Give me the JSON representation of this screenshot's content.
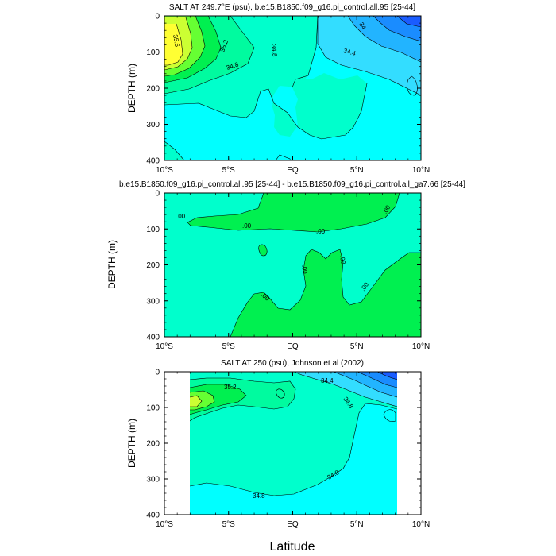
{
  "colors": {
    "cyan": "#00ffff",
    "aqua_green": "#00ffcc",
    "mint": "#00fb9f",
    "green": "#00f050",
    "bright_green": "#66ff33",
    "yellow_green": "#ccff33",
    "yellow": "#ffff33",
    "light_blue": "#33ddff",
    "sky_blue": "#22b4ff",
    "blue": "#1a8cff",
    "deep_blue": "#1a5cff"
  },
  "x_axis_label": "Latitude",
  "chart_data": [
    {
      "type": "contour",
      "title": "SALT AT 249.7°E (psu), b.e15.B1850.f09_g16.pi_control.all.95 [25-44]",
      "xlabel": "",
      "ylabel": "DEPTH (m)",
      "x_tick_labels": [
        "10°S",
        "5°S",
        "EQ",
        "5°N",
        "10°N"
      ],
      "x_ticks": [
        -10,
        -5,
        0,
        5,
        10
      ],
      "y_tick_labels": [
        "0",
        "100",
        "200",
        "300",
        "400"
      ],
      "y_ticks": [
        0,
        100,
        200,
        300,
        400
      ],
      "xlim": [
        -10,
        10
      ],
      "ylim": [
        0,
        400
      ],
      "y_reversed": true,
      "contour_labels": [
        "35.6",
        "35.2",
        "34.8",
        "34.8",
        "34.4",
        "34"
      ]
    },
    {
      "type": "contour",
      "title": "b.e15.B1850.f09_g16.pi_control.all.95 [25-44] - b.e15.B1850.f09_g16.pi_control.all_ga7.66 [25-44]",
      "xlabel": "",
      "ylabel": "DEPTH (m)",
      "x_tick_labels": [
        "10°S",
        "5°S",
        "EQ",
        "5°N",
        "10°N"
      ],
      "x_ticks": [
        -10,
        -5,
        0,
        5,
        10
      ],
      "y_tick_labels": [
        "0",
        "100",
        "200",
        "300",
        "400"
      ],
      "y_ticks": [
        0,
        100,
        200,
        300,
        400
      ],
      "xlim": [
        -10,
        10
      ],
      "ylim": [
        0,
        400
      ],
      "y_reversed": true,
      "contour_labels": [
        ".00",
        ".00",
        ".00",
        ".00",
        ".00",
        ".00",
        ".00",
        ".00",
        ".00"
      ]
    },
    {
      "type": "contour",
      "title": "SALT AT 250 (psu), Johnson et al (2002)",
      "xlabel": "Latitude",
      "ylabel": "DEPTH (m)",
      "x_tick_labels": [
        "10°S",
        "5°S",
        "EQ",
        "5°N",
        "10°N"
      ],
      "x_ticks": [
        -10,
        -5,
        0,
        5,
        10
      ],
      "y_tick_labels": [
        "0",
        "100",
        "200",
        "300",
        "400"
      ],
      "y_ticks": [
        0,
        100,
        200,
        300,
        400
      ],
      "xlim": [
        -10,
        10
      ],
      "ylim": [
        0,
        400
      ],
      "y_reversed": true,
      "data_extent_x": [
        -8,
        8
      ],
      "contour_labels": [
        "35.2",
        "34.4",
        "34.8",
        "34.8",
        "34.8"
      ]
    }
  ]
}
